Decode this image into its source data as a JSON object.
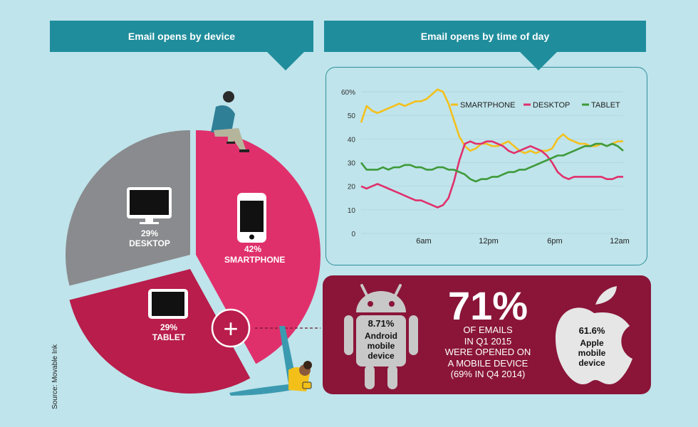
{
  "titles": {
    "left": "Email opens by device",
    "right": "Email opens by time of day"
  },
  "chart_data": [
    {
      "type": "pie",
      "title": "Email opens by device",
      "slices": [
        {
          "label": "SMARTPHONE",
          "value": 42,
          "value_label": "42%",
          "color": "#e0306c"
        },
        {
          "label": "TABLET",
          "value": 29,
          "value_label": "29%",
          "color": "#b81d4b"
        },
        {
          "label": "DESKTOP",
          "value": 29,
          "value_label": "29%",
          "color": "#8a8b8e"
        }
      ]
    },
    {
      "type": "line",
      "title": "Email opens by time of day",
      "x_ticks": [
        "6am",
        "12pm",
        "6pm",
        "12am"
      ],
      "y_ticks": [
        "60%",
        "50",
        "40",
        "30",
        "20",
        "10",
        "0"
      ],
      "ylim": [
        0,
        60
      ],
      "legend_position": "top-right",
      "series": [
        {
          "name": "SMARTPHONE",
          "color": "#f4c01d",
          "values": [
            47,
            54,
            52,
            51,
            52,
            53,
            54,
            55,
            54,
            55,
            56,
            56,
            57,
            59,
            61,
            60,
            55,
            48,
            41,
            37,
            35,
            36,
            38,
            38,
            37,
            37,
            38,
            39,
            37,
            35,
            34,
            35,
            34,
            35,
            35,
            36,
            40,
            42,
            40,
            39,
            38,
            38,
            37,
            37,
            38,
            37,
            38,
            39,
            39
          ]
        },
        {
          "name": "DESKTOP",
          "color": "#e0306c",
          "values": [
            20,
            19,
            20,
            21,
            20,
            19,
            18,
            17,
            16,
            15,
            14,
            14,
            13,
            12,
            11,
            12,
            15,
            22,
            31,
            38,
            39,
            38,
            38,
            39,
            39,
            38,
            37,
            35,
            34,
            35,
            36,
            37,
            36,
            35,
            33,
            30,
            26,
            24,
            23,
            24,
            24,
            24,
            24,
            24,
            24,
            23,
            23,
            24,
            24
          ]
        },
        {
          "name": "TABLET",
          "color": "#3e9a3a",
          "values": [
            30,
            27,
            27,
            27,
            28,
            27,
            28,
            28,
            29,
            29,
            28,
            28,
            27,
            27,
            28,
            28,
            27,
            27,
            26,
            25,
            23,
            22,
            23,
            23,
            24,
            24,
            25,
            26,
            26,
            27,
            27,
            28,
            29,
            30,
            31,
            32,
            33,
            33,
            34,
            35,
            36,
            37,
            37,
            38,
            38,
            37,
            38,
            37,
            35
          ]
        }
      ]
    }
  ],
  "mobile": {
    "headline": "71%",
    "lines": [
      "OF EMAILS",
      "IN Q1 2015",
      "WERE OPENED ON",
      "A MOBILE DEVICE",
      "(69% IN Q4 2014)"
    ],
    "android": {
      "value": "8.71%",
      "label_lines": [
        "Android",
        "mobile",
        "device"
      ]
    },
    "apple": {
      "value": "61.6%",
      "label_lines": [
        "Apple",
        "mobile",
        "device"
      ]
    }
  },
  "plus_symbol": "+",
  "source": "Source: Movable Ink",
  "icons": {
    "smartphone": "smartphone-icon",
    "desktop": "monitor-icon",
    "tablet": "tablet-icon",
    "android": "android-robot-icon",
    "apple": "apple-logo-icon"
  }
}
